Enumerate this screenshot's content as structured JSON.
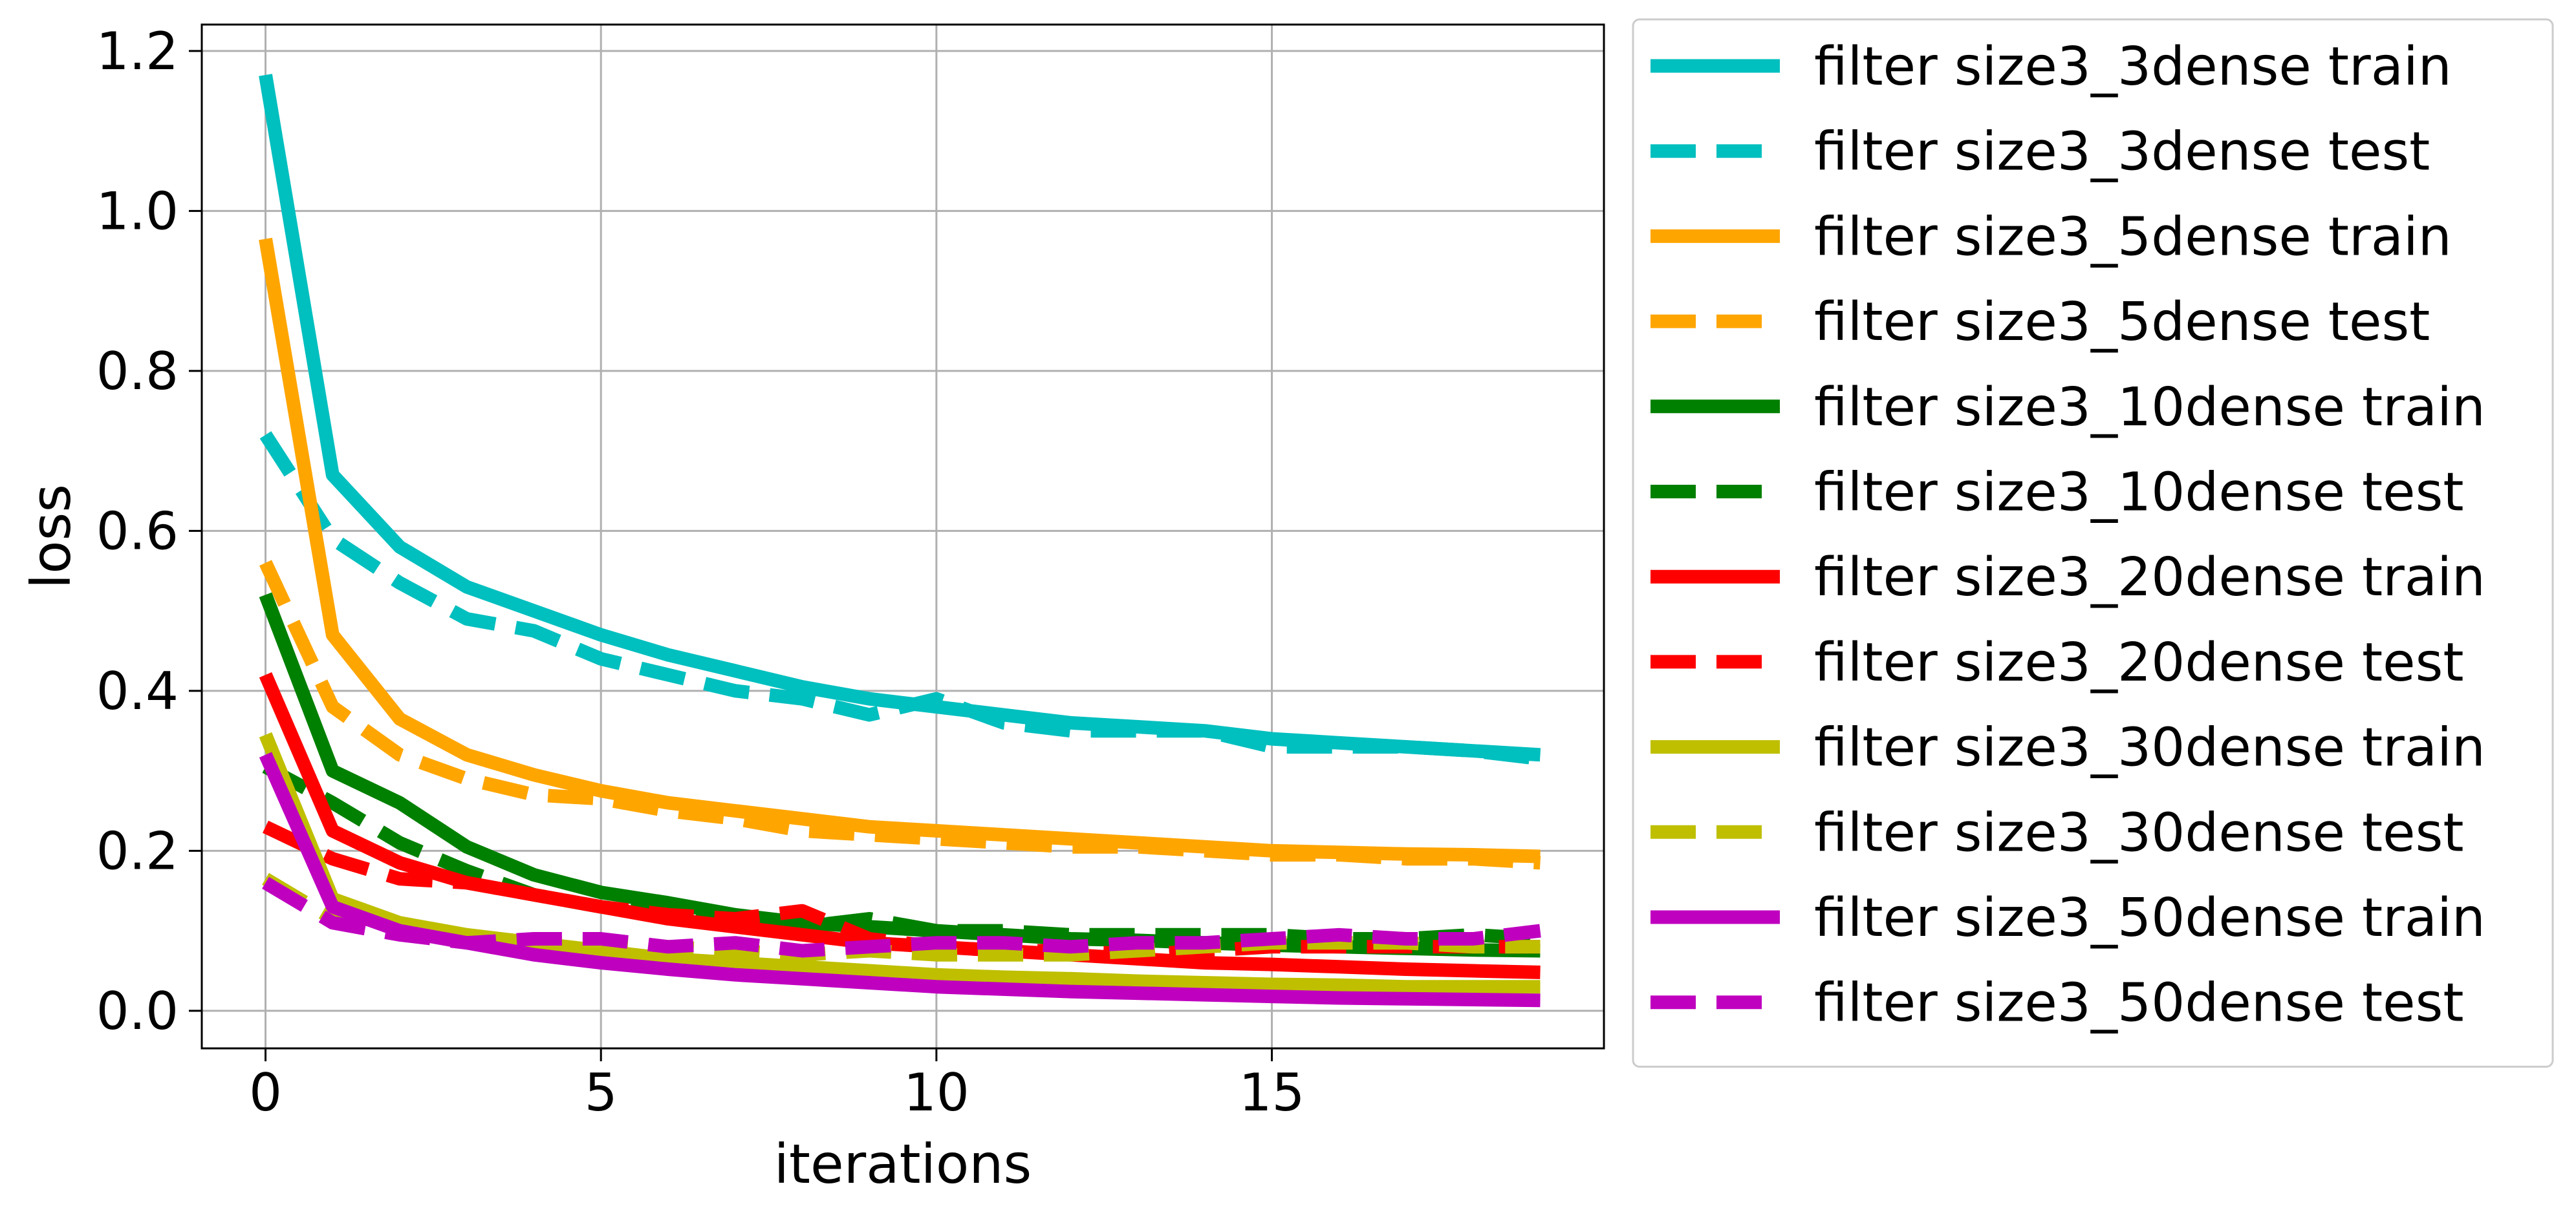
{
  "chart_data": {
    "type": "line",
    "title": "",
    "xlabel": "iterations",
    "ylabel": "loss",
    "xlim": [
      -0.95,
      19.95
    ],
    "ylim": [
      -0.047,
      1.233
    ],
    "xticks": [
      0,
      5,
      10,
      15
    ],
    "yticks": [
      0.0,
      0.2,
      0.4,
      0.6,
      0.8,
      1.0,
      1.2
    ],
    "ytick_labels": [
      "0.0",
      "0.2",
      "0.4",
      "0.6",
      "0.8",
      "1.0",
      "1.2"
    ],
    "grid": true,
    "legend_position": "outside-right",
    "x": [
      0,
      1,
      2,
      3,
      4,
      5,
      6,
      7,
      8,
      9,
      10,
      11,
      12,
      13,
      14,
      15,
      16,
      17,
      18,
      19
    ],
    "series": [
      {
        "name": "filter size3_3dense train",
        "color": "#00bfbf",
        "dash": "solid",
        "values": [
          1.17,
          0.67,
          0.58,
          0.53,
          0.5,
          0.47,
          0.445,
          0.425,
          0.405,
          0.39,
          0.38,
          0.37,
          0.36,
          0.355,
          0.35,
          0.34,
          0.335,
          0.33,
          0.325,
          0.32
        ]
      },
      {
        "name": "filter size3_3dense test",
        "color": "#00bfbf",
        "dash": "dashed",
        "values": [
          0.72,
          0.59,
          0.535,
          0.49,
          0.475,
          0.44,
          0.42,
          0.4,
          0.39,
          0.37,
          0.39,
          0.36,
          0.35,
          0.35,
          0.35,
          0.33,
          0.33,
          0.33,
          0.325,
          0.315
        ]
      },
      {
        "name": "filter size3_5dense train",
        "color": "#ffa500",
        "dash": "solid",
        "values": [
          0.965,
          0.47,
          0.365,
          0.32,
          0.295,
          0.275,
          0.26,
          0.25,
          0.24,
          0.23,
          0.225,
          0.22,
          0.215,
          0.21,
          0.205,
          0.2,
          0.198,
          0.196,
          0.195,
          0.193
        ]
      },
      {
        "name": "filter size3_5dense test",
        "color": "#ffa500",
        "dash": "dashed",
        "values": [
          0.56,
          0.38,
          0.32,
          0.29,
          0.27,
          0.265,
          0.25,
          0.24,
          0.225,
          0.22,
          0.215,
          0.21,
          0.205,
          0.205,
          0.2,
          0.195,
          0.195,
          0.19,
          0.19,
          0.185
        ]
      },
      {
        "name": "filter size3_10dense train",
        "color": "#008000",
        "dash": "solid",
        "values": [
          0.52,
          0.3,
          0.26,
          0.205,
          0.17,
          0.148,
          0.135,
          0.12,
          0.11,
          0.105,
          0.1,
          0.095,
          0.09,
          0.088,
          0.085,
          0.082,
          0.08,
          0.078,
          0.076,
          0.075
        ]
      },
      {
        "name": "filter size3_10dense test",
        "color": "#008000",
        "dash": "dashed",
        "values": [
          0.305,
          0.26,
          0.21,
          0.175,
          0.145,
          0.13,
          0.12,
          0.115,
          0.105,
          0.115,
          0.1,
          0.1,
          0.095,
          0.095,
          0.095,
          0.095,
          0.09,
          0.09,
          0.095,
          0.09
        ]
      },
      {
        "name": "filter size3_20dense train",
        "color": "#ff0000",
        "dash": "solid",
        "values": [
          0.42,
          0.225,
          0.185,
          0.16,
          0.145,
          0.13,
          0.115,
          0.105,
          0.095,
          0.085,
          0.08,
          0.075,
          0.07,
          0.065,
          0.06,
          0.058,
          0.055,
          0.052,
          0.05,
          0.048
        ]
      },
      {
        "name": "filter size3_20dense test",
        "color": "#ff0000",
        "dash": "dashed",
        "values": [
          0.23,
          0.19,
          0.165,
          0.16,
          0.145,
          0.13,
          0.12,
          0.115,
          0.125,
          0.09,
          0.08,
          0.075,
          0.075,
          0.07,
          0.075,
          0.08,
          0.08,
          0.08,
          0.08,
          0.08
        ]
      },
      {
        "name": "filter size3_30dense train",
        "color": "#bfbf00",
        "dash": "solid",
        "values": [
          0.345,
          0.14,
          0.11,
          0.095,
          0.085,
          0.075,
          0.065,
          0.06,
          0.055,
          0.05,
          0.045,
          0.042,
          0.04,
          0.037,
          0.035,
          0.033,
          0.032,
          0.03,
          0.03,
          0.03
        ]
      },
      {
        "name": "filter size3_30dense test",
        "color": "#bfbf00",
        "dash": "dashed",
        "values": [
          0.165,
          0.115,
          0.105,
          0.09,
          0.085,
          0.085,
          0.08,
          0.075,
          0.07,
          0.075,
          0.07,
          0.07,
          0.07,
          0.075,
          0.08,
          0.085,
          0.085,
          0.085,
          0.08,
          0.08
        ]
      },
      {
        "name": "filter size3_50dense train",
        "color": "#bf00bf",
        "dash": "solid",
        "values": [
          0.32,
          0.13,
          0.1,
          0.085,
          0.07,
          0.06,
          0.052,
          0.045,
          0.04,
          0.035,
          0.03,
          0.027,
          0.024,
          0.022,
          0.02,
          0.018,
          0.016,
          0.015,
          0.014,
          0.013
        ]
      },
      {
        "name": "filter size3_50dense test",
        "color": "#bf00bf",
        "dash": "dashed",
        "values": [
          0.16,
          0.11,
          0.095,
          0.085,
          0.09,
          0.09,
          0.08,
          0.085,
          0.075,
          0.08,
          0.085,
          0.085,
          0.08,
          0.085,
          0.085,
          0.09,
          0.095,
          0.09,
          0.09,
          0.1
        ]
      }
    ]
  }
}
